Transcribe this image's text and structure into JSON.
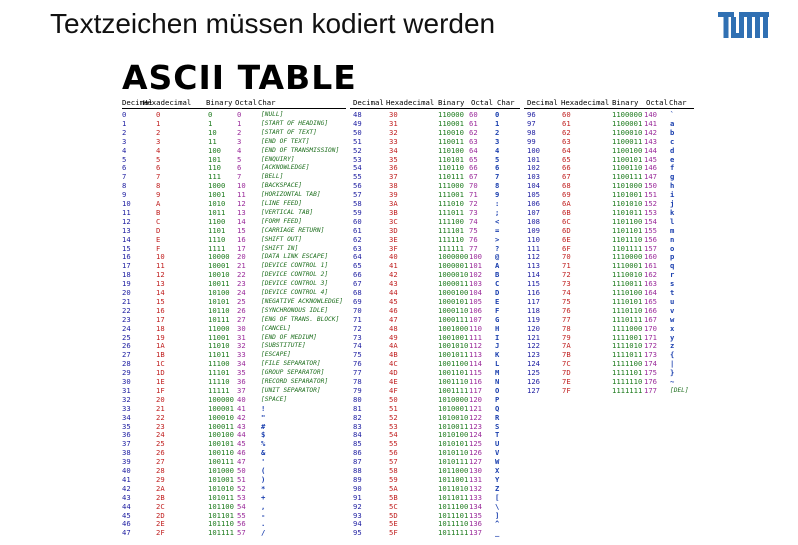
{
  "slide": {
    "title": "Textzeichen müssen kodiert werden",
    "logo_text": "TUM"
  },
  "table": {
    "title": "ASCII TABLE",
    "headers": [
      "Decimal",
      "Hexadecimal",
      "Binary",
      "Octal",
      "Char"
    ],
    "panels": [
      {
        "rows": [
          [
            "0",
            "0",
            "0",
            "0",
            "[NULL]"
          ],
          [
            "1",
            "1",
            "1",
            "1",
            "[START OF HEADING]"
          ],
          [
            "2",
            "2",
            "10",
            "2",
            "[START OF TEXT]"
          ],
          [
            "3",
            "3",
            "11",
            "3",
            "[END OF TEXT]"
          ],
          [
            "4",
            "4",
            "100",
            "4",
            "[END OF TRANSMISSION]"
          ],
          [
            "5",
            "5",
            "101",
            "5",
            "[ENQUIRY]"
          ],
          [
            "6",
            "6",
            "110",
            "6",
            "[ACKNOWLEDGE]"
          ],
          [
            "7",
            "7",
            "111",
            "7",
            "[BELL]"
          ],
          [
            "8",
            "8",
            "1000",
            "10",
            "[BACKSPACE]"
          ],
          [
            "9",
            "9",
            "1001",
            "11",
            "[HORIZONTAL TAB]"
          ],
          [
            "10",
            "A",
            "1010",
            "12",
            "[LINE FEED]"
          ],
          [
            "11",
            "B",
            "1011",
            "13",
            "[VERTICAL TAB]"
          ],
          [
            "12",
            "C",
            "1100",
            "14",
            "[FORM FEED]"
          ],
          [
            "13",
            "D",
            "1101",
            "15",
            "[CARRIAGE RETURN]"
          ],
          [
            "14",
            "E",
            "1110",
            "16",
            "[SHIFT OUT]"
          ],
          [
            "15",
            "F",
            "1111",
            "17",
            "[SHIFT IN]"
          ],
          [
            "16",
            "10",
            "10000",
            "20",
            "[DATA LINK ESCAPE]"
          ],
          [
            "17",
            "11",
            "10001",
            "21",
            "[DEVICE CONTROL 1]"
          ],
          [
            "18",
            "12",
            "10010",
            "22",
            "[DEVICE CONTROL 2]"
          ],
          [
            "19",
            "13",
            "10011",
            "23",
            "[DEVICE CONTROL 3]"
          ],
          [
            "20",
            "14",
            "10100",
            "24",
            "[DEVICE CONTROL 4]"
          ],
          [
            "21",
            "15",
            "10101",
            "25",
            "[NEGATIVE ACKNOWLEDGE]"
          ],
          [
            "22",
            "16",
            "10110",
            "26",
            "[SYNCHRONOUS IDLE]"
          ],
          [
            "23",
            "17",
            "10111",
            "27",
            "[ENG OF TRANS. BLOCK]"
          ],
          [
            "24",
            "18",
            "11000",
            "30",
            "[CANCEL]"
          ],
          [
            "25",
            "19",
            "11001",
            "31",
            "[END OF MEDIUM]"
          ],
          [
            "26",
            "1A",
            "11010",
            "32",
            "[SUBSTITUTE]"
          ],
          [
            "27",
            "1B",
            "11011",
            "33",
            "[ESCAPE]"
          ],
          [
            "28",
            "1C",
            "11100",
            "34",
            "[FILE SEPARATOR]"
          ],
          [
            "29",
            "1D",
            "11101",
            "35",
            "[GROUP SEPARATOR]"
          ],
          [
            "30",
            "1E",
            "11110",
            "36",
            "[RECORD SEPARATOR]"
          ],
          [
            "31",
            "1F",
            "11111",
            "37",
            "[UNIT SEPARATOR]"
          ],
          [
            "32",
            "20",
            "100000",
            "40",
            "[SPACE]"
          ],
          [
            "33",
            "21",
            "100001",
            "41",
            "!"
          ],
          [
            "34",
            "22",
            "100010",
            "42",
            "\""
          ],
          [
            "35",
            "23",
            "100011",
            "43",
            "#"
          ],
          [
            "36",
            "24",
            "100100",
            "44",
            "$"
          ],
          [
            "37",
            "25",
            "100101",
            "45",
            "%"
          ],
          [
            "38",
            "26",
            "100110",
            "46",
            "&"
          ],
          [
            "39",
            "27",
            "100111",
            "47",
            "'"
          ],
          [
            "40",
            "28",
            "101000",
            "50",
            "("
          ],
          [
            "41",
            "29",
            "101001",
            "51",
            ")"
          ],
          [
            "42",
            "2A",
            "101010",
            "52",
            "*"
          ],
          [
            "43",
            "2B",
            "101011",
            "53",
            "+"
          ],
          [
            "44",
            "2C",
            "101100",
            "54",
            ","
          ],
          [
            "45",
            "2D",
            "101101",
            "55",
            "-"
          ],
          [
            "46",
            "2E",
            "101110",
            "56",
            "."
          ],
          [
            "47",
            "2F",
            "101111",
            "57",
            "/"
          ]
        ]
      },
      {
        "rows": [
          [
            "48",
            "30",
            "110000",
            "60",
            "0"
          ],
          [
            "49",
            "31",
            "110001",
            "61",
            "1"
          ],
          [
            "50",
            "32",
            "110010",
            "62",
            "2"
          ],
          [
            "51",
            "33",
            "110011",
            "63",
            "3"
          ],
          [
            "52",
            "34",
            "110100",
            "64",
            "4"
          ],
          [
            "53",
            "35",
            "110101",
            "65",
            "5"
          ],
          [
            "54",
            "36",
            "110110",
            "66",
            "6"
          ],
          [
            "55",
            "37",
            "110111",
            "67",
            "7"
          ],
          [
            "56",
            "38",
            "111000",
            "70",
            "8"
          ],
          [
            "57",
            "39",
            "111001",
            "71",
            "9"
          ],
          [
            "58",
            "3A",
            "111010",
            "72",
            ":"
          ],
          [
            "59",
            "3B",
            "111011",
            "73",
            ";"
          ],
          [
            "60",
            "3C",
            "111100",
            "74",
            "<"
          ],
          [
            "61",
            "3D",
            "111101",
            "75",
            "="
          ],
          [
            "62",
            "3E",
            "111110",
            "76",
            ">"
          ],
          [
            "63",
            "3F",
            "111111",
            "77",
            "?"
          ],
          [
            "64",
            "40",
            "1000000",
            "100",
            "@"
          ],
          [
            "65",
            "41",
            "1000001",
            "101",
            "A"
          ],
          [
            "66",
            "42",
            "1000010",
            "102",
            "B"
          ],
          [
            "67",
            "43",
            "1000011",
            "103",
            "C"
          ],
          [
            "68",
            "44",
            "1000100",
            "104",
            "D"
          ],
          [
            "69",
            "45",
            "1000101",
            "105",
            "E"
          ],
          [
            "70",
            "46",
            "1000110",
            "106",
            "F"
          ],
          [
            "71",
            "47",
            "1000111",
            "107",
            "G"
          ],
          [
            "72",
            "48",
            "1001000",
            "110",
            "H"
          ],
          [
            "73",
            "49",
            "1001001",
            "111",
            "I"
          ],
          [
            "74",
            "4A",
            "1001010",
            "112",
            "J"
          ],
          [
            "75",
            "4B",
            "1001011",
            "113",
            "K"
          ],
          [
            "76",
            "4C",
            "1001100",
            "114",
            "L"
          ],
          [
            "77",
            "4D",
            "1001101",
            "115",
            "M"
          ],
          [
            "78",
            "4E",
            "1001110",
            "116",
            "N"
          ],
          [
            "79",
            "4F",
            "1001111",
            "117",
            "O"
          ],
          [
            "80",
            "50",
            "1010000",
            "120",
            "P"
          ],
          [
            "81",
            "51",
            "1010001",
            "121",
            "Q"
          ],
          [
            "82",
            "52",
            "1010010",
            "122",
            "R"
          ],
          [
            "83",
            "53",
            "1010011",
            "123",
            "S"
          ],
          [
            "84",
            "54",
            "1010100",
            "124",
            "T"
          ],
          [
            "85",
            "55",
            "1010101",
            "125",
            "U"
          ],
          [
            "86",
            "56",
            "1010110",
            "126",
            "V"
          ],
          [
            "87",
            "57",
            "1010111",
            "127",
            "W"
          ],
          [
            "88",
            "58",
            "1011000",
            "130",
            "X"
          ],
          [
            "89",
            "59",
            "1011001",
            "131",
            "Y"
          ],
          [
            "90",
            "5A",
            "1011010",
            "132",
            "Z"
          ],
          [
            "91",
            "5B",
            "1011011",
            "133",
            "["
          ],
          [
            "92",
            "5C",
            "1011100",
            "134",
            "\\"
          ],
          [
            "93",
            "5D",
            "1011101",
            "135",
            "]"
          ],
          [
            "94",
            "5E",
            "1011110",
            "136",
            "^"
          ],
          [
            "95",
            "5F",
            "1011111",
            "137",
            "_"
          ]
        ]
      },
      {
        "rows": [
          [
            "96",
            "60",
            "1100000",
            "140",
            "`"
          ],
          [
            "97",
            "61",
            "1100001",
            "141",
            "a"
          ],
          [
            "98",
            "62",
            "1100010",
            "142",
            "b"
          ],
          [
            "99",
            "63",
            "1100011",
            "143",
            "c"
          ],
          [
            "100",
            "64",
            "1100100",
            "144",
            "d"
          ],
          [
            "101",
            "65",
            "1100101",
            "145",
            "e"
          ],
          [
            "102",
            "66",
            "1100110",
            "146",
            "f"
          ],
          [
            "103",
            "67",
            "1100111",
            "147",
            "g"
          ],
          [
            "104",
            "68",
            "1101000",
            "150",
            "h"
          ],
          [
            "105",
            "69",
            "1101001",
            "151",
            "i"
          ],
          [
            "106",
            "6A",
            "1101010",
            "152",
            "j"
          ],
          [
            "107",
            "6B",
            "1101011",
            "153",
            "k"
          ],
          [
            "108",
            "6C",
            "1101100",
            "154",
            "l"
          ],
          [
            "109",
            "6D",
            "1101101",
            "155",
            "m"
          ],
          [
            "110",
            "6E",
            "1101110",
            "156",
            "n"
          ],
          [
            "111",
            "6F",
            "1101111",
            "157",
            "o"
          ],
          [
            "112",
            "70",
            "1110000",
            "160",
            "p"
          ],
          [
            "113",
            "71",
            "1110001",
            "161",
            "q"
          ],
          [
            "114",
            "72",
            "1110010",
            "162",
            "r"
          ],
          [
            "115",
            "73",
            "1110011",
            "163",
            "s"
          ],
          [
            "116",
            "74",
            "1110100",
            "164",
            "t"
          ],
          [
            "117",
            "75",
            "1110101",
            "165",
            "u"
          ],
          [
            "118",
            "76",
            "1110110",
            "166",
            "v"
          ],
          [
            "119",
            "77",
            "1110111",
            "167",
            "w"
          ],
          [
            "120",
            "78",
            "1111000",
            "170",
            "x"
          ],
          [
            "121",
            "79",
            "1111001",
            "171",
            "y"
          ],
          [
            "122",
            "7A",
            "1111010",
            "172",
            "z"
          ],
          [
            "123",
            "7B",
            "1111011",
            "173",
            "{"
          ],
          [
            "124",
            "7C",
            "1111100",
            "174",
            "|"
          ],
          [
            "125",
            "7D",
            "1111101",
            "175",
            "}"
          ],
          [
            "126",
            "7E",
            "1111110",
            "176",
            "~"
          ],
          [
            "127",
            "7F",
            "1111111",
            "177",
            "[DEL]"
          ]
        ]
      }
    ]
  }
}
